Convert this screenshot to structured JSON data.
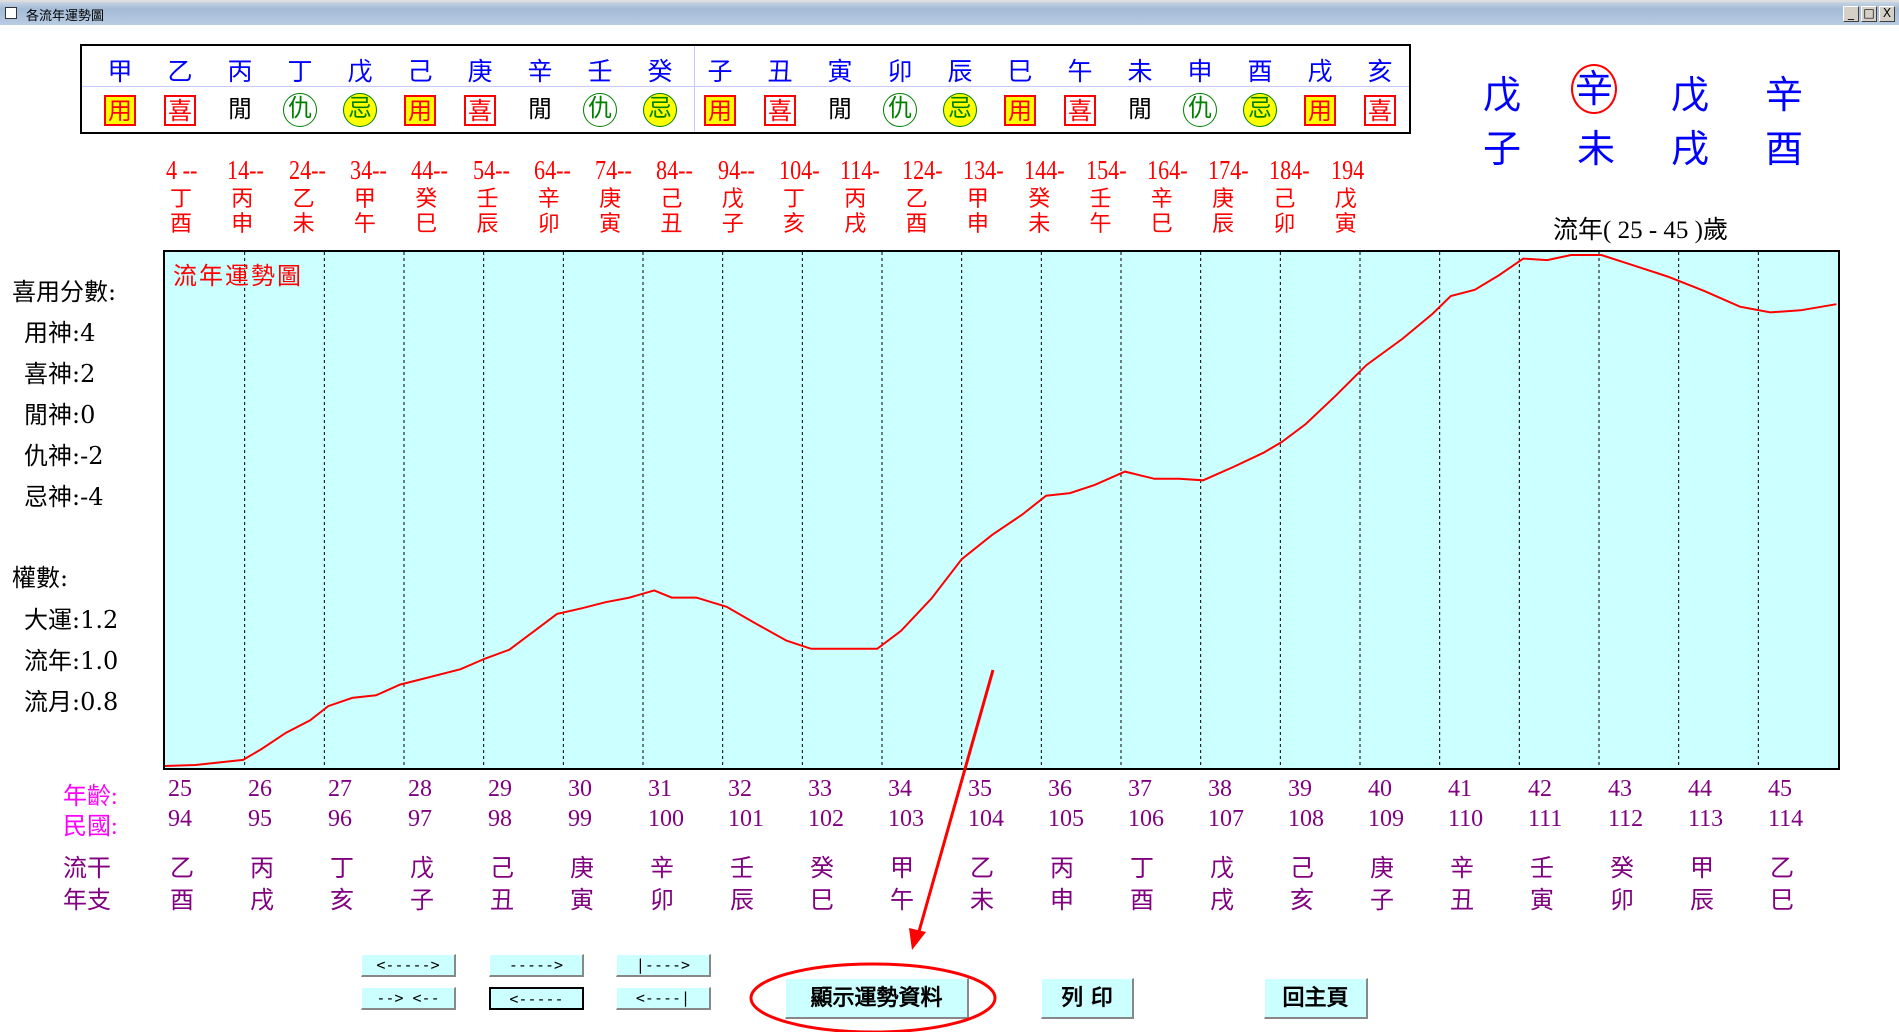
{
  "window": {
    "title": "各流年運勢圖",
    "controls": [
      "_",
      "□",
      "X"
    ]
  },
  "top_table": {
    "stems": [
      "甲",
      "乙",
      "丙",
      "丁",
      "戊",
      "己",
      "庚",
      "辛",
      "壬",
      "癸",
      "子",
      "丑",
      "寅",
      "卯",
      "辰",
      "巳",
      "午",
      "未",
      "申",
      "酉",
      "戌",
      "亥"
    ],
    "roles": [
      {
        "t": "用",
        "k": "yong"
      },
      {
        "t": "喜",
        "k": "xi"
      },
      {
        "t": "閒",
        "k": "xian"
      },
      {
        "t": "仇",
        "k": "chou"
      },
      {
        "t": "忌",
        "k": "ji"
      },
      {
        "t": "用",
        "k": "yong"
      },
      {
        "t": "喜",
        "k": "xi"
      },
      {
        "t": "閒",
        "k": "xian"
      },
      {
        "t": "仇",
        "k": "chou"
      },
      {
        "t": "忌",
        "k": "ji"
      },
      {
        "t": "用",
        "k": "yong"
      },
      {
        "t": "喜",
        "k": "xi"
      },
      {
        "t": "閒",
        "k": "xian"
      },
      {
        "t": "仇",
        "k": "chou"
      },
      {
        "t": "忌",
        "k": "ji"
      },
      {
        "t": "用",
        "k": "yong"
      },
      {
        "t": "喜",
        "k": "xi"
      },
      {
        "t": "閒",
        "k": "xian"
      },
      {
        "t": "仇",
        "k": "chou"
      },
      {
        "t": "忌",
        "k": "ji"
      },
      {
        "t": "用",
        "k": "yong"
      },
      {
        "t": "喜",
        "k": "xi"
      }
    ]
  },
  "pillars": {
    "top": [
      "戊",
      "辛",
      "戊",
      "辛"
    ],
    "bottom": [
      "子",
      "未",
      "戌",
      "酉"
    ],
    "circled_index": 1
  },
  "dayun": {
    "ages": [
      "4 --",
      "14--",
      "24--",
      "34--",
      "44--",
      "54--",
      "64--",
      "74--",
      "84--",
      "94--",
      "104-",
      "114-",
      "124-",
      "134-",
      "144-",
      "154-",
      "164-",
      "174-",
      "184-",
      "194"
    ],
    "stems": [
      "丁",
      "丙",
      "乙",
      "甲",
      "癸",
      "壬",
      "辛",
      "庚",
      "己",
      "戊",
      "丁",
      "丙",
      "乙",
      "甲",
      "癸",
      "壬",
      "辛",
      "庚",
      "己",
      "戊"
    ],
    "branches": [
      "酉",
      "申",
      "未",
      "午",
      "巳",
      "辰",
      "卯",
      "寅",
      "丑",
      "子",
      "亥",
      "戌",
      "酉",
      "申",
      "未",
      "午",
      "巳",
      "辰",
      "卯",
      "寅"
    ]
  },
  "range_label": "流年( 25 - 45 )歲",
  "scores": {
    "title": "喜用分數:",
    "items": [
      "用神:4",
      "喜神:2",
      "閒神:0",
      "仇神:-2",
      "忌神:-4"
    ]
  },
  "weights": {
    "title": "權數:",
    "items": [
      "大運:1.2",
      "流年:1.0",
      "流月:0.8"
    ]
  },
  "rows": {
    "age_label": "年齡:",
    "roc_label": "民國:",
    "gz_label_1": "流干",
    "gz_label_2": "年支",
    "ages": [
      "25",
      "26",
      "27",
      "28",
      "29",
      "30",
      "31",
      "32",
      "33",
      "34",
      "35",
      "36",
      "37",
      "38",
      "39",
      "40",
      "41",
      "42",
      "43",
      "44",
      "45"
    ],
    "roc": [
      "94",
      "95",
      "96",
      "97",
      "98",
      "99",
      "100",
      "101",
      "102",
      "103",
      "104",
      "105",
      "106",
      "107",
      "108",
      "109",
      "110",
      "111",
      "112",
      "113",
      "114"
    ],
    "stems": [
      "乙",
      "丙",
      "丁",
      "戊",
      "己",
      "庚",
      "辛",
      "壬",
      "癸",
      "甲",
      "乙",
      "丙",
      "丁",
      "戊",
      "己",
      "庚",
      "辛",
      "壬",
      "癸",
      "甲",
      "乙"
    ],
    "branches": [
      "酉",
      "戌",
      "亥",
      "子",
      "丑",
      "寅",
      "卯",
      "辰",
      "巳",
      "午",
      "未",
      "申",
      "酉",
      "戌",
      "亥",
      "子",
      "丑",
      "寅",
      "卯",
      "辰",
      "巳"
    ]
  },
  "chart_data": {
    "type": "line",
    "title": "流年運勢圖",
    "xlim": [
      25,
      46
    ],
    "ylim": [
      0,
      100
    ],
    "grid": "vertical dashed",
    "line_color": "#ff0000",
    "background": "#ccffff",
    "x": [
      25.0,
      25.38,
      25.98,
      26.21,
      26.52,
      26.82,
      27.05,
      27.35,
      27.65,
      27.95,
      28.26,
      28.71,
      29.02,
      29.32,
      29.62,
      29.92,
      30.23,
      30.53,
      30.83,
      31.14,
      31.36,
      31.67,
      32.05,
      32.42,
      32.8,
      33.11,
      33.56,
      33.94,
      34.24,
      34.62,
      35.0,
      35.38,
      35.76,
      36.06,
      36.36,
      36.67,
      37.05,
      37.42,
      37.73,
      38.03,
      38.41,
      38.79,
      39.02,
      39.32,
      39.7,
      40.08,
      40.53,
      40.91,
      41.14,
      41.44,
      41.74,
      42.05,
      42.35,
      42.65,
      43.03,
      43.41,
      43.86,
      44.32,
      44.77,
      45.15,
      45.53,
      45.98
    ],
    "y": [
      0,
      0.2,
      1.2,
      3.3,
      6.5,
      8.9,
      11.7,
      13.3,
      13.8,
      15.9,
      17.1,
      18.9,
      21.0,
      22.7,
      26.2,
      29.7,
      30.8,
      32.0,
      32.9,
      34.3,
      32.9,
      32.9,
      31.1,
      27.8,
      24.5,
      22.9,
      22.9,
      22.9,
      26.4,
      32.7,
      40.4,
      45.1,
      49.1,
      52.8,
      53.3,
      54.9,
      57.5,
      56.1,
      56.1,
      55.8,
      58.4,
      61.2,
      63.3,
      66.8,
      72.4,
      78.3,
      83.4,
      88.3,
      91.8,
      93.0,
      95.8,
      99.1,
      98.8,
      99.8,
      99.8,
      97.9,
      95.6,
      92.8,
      89.7,
      88.6,
      89.0,
      90.2
    ]
  },
  "nav_buttons": [
    "<----->",
    "----->",
    "|---->",
    "--> <--",
    "<-----",
    "<----|"
  ],
  "buttons": {
    "show_data": "顯示運勢資料",
    "print": "列 印",
    "home": "回主頁"
  },
  "annotation_color": "#ff0000"
}
